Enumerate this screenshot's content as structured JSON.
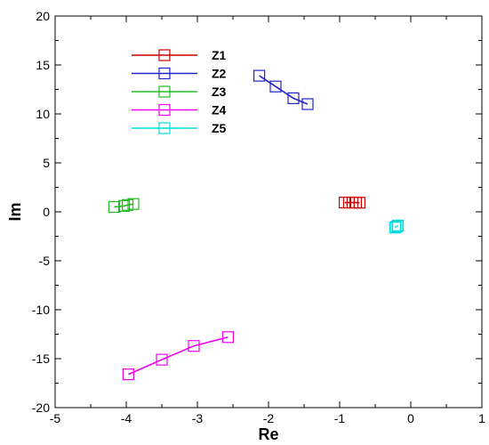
{
  "chart_data": {
    "type": "line",
    "title": "",
    "xlabel": "Re",
    "ylabel": "Im",
    "xlim": [
      -5,
      1
    ],
    "ylim": [
      -20,
      20
    ],
    "xticks": [
      "-5",
      "-4",
      "-3",
      "-2",
      "-1",
      "0",
      "1"
    ],
    "yticks": [
      "20",
      "15",
      "10",
      "5",
      "0",
      "-5",
      "-10",
      "-15",
      "-20"
    ],
    "grid": false,
    "legend_position": "top-left",
    "series": [
      {
        "name": "Z1",
        "color": "#cc0000",
        "marker": "square",
        "x": [
          -0.93,
          -0.87,
          -0.82,
          -0.77,
          -0.72
        ],
        "y": [
          0.95,
          0.95,
          0.95,
          0.95,
          0.93
        ]
      },
      {
        "name": "Z2",
        "color": "#2222cc",
        "marker": "square",
        "x": [
          -2.13,
          -1.9,
          -1.65,
          -1.45
        ],
        "y": [
          13.9,
          12.8,
          11.6,
          11.0
        ]
      },
      {
        "name": "Z3",
        "color": "#22bb22",
        "marker": "square",
        "x": [
          -4.17,
          -4.03,
          -3.98,
          -3.9
        ],
        "y": [
          0.5,
          0.6,
          0.7,
          0.8
        ]
      },
      {
        "name": "Z4",
        "color": "#ee00ee",
        "marker": "square",
        "x": [
          -3.97,
          -3.5,
          -3.05,
          -2.57
        ],
        "y": [
          -16.6,
          -15.1,
          -13.7,
          -12.8
        ]
      },
      {
        "name": "Z5",
        "color": "#00dddd",
        "marker": "square",
        "x": [
          -0.22,
          -0.2,
          -0.18
        ],
        "y": [
          -1.6,
          -1.5,
          -1.4
        ]
      }
    ]
  }
}
